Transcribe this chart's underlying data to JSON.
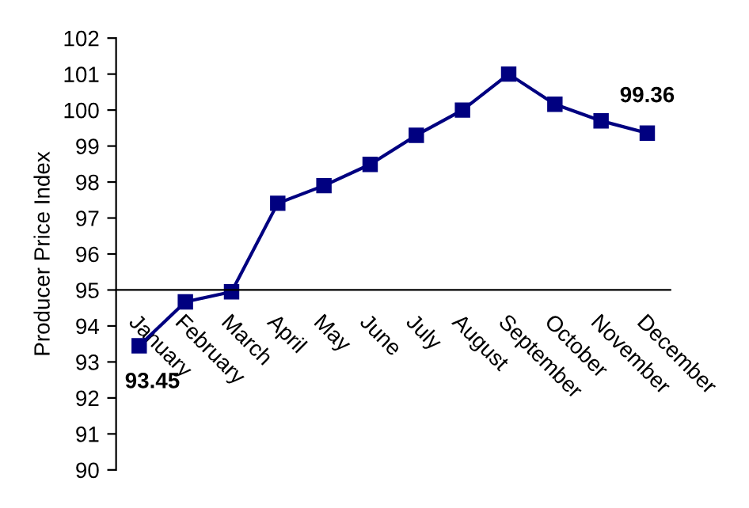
{
  "chart_data": {
    "type": "line",
    "ylabel": "Producer Price Index",
    "categories": [
      "January",
      "February",
      "March",
      "April",
      "May",
      "June",
      "July",
      "August",
      "September",
      "October",
      "November",
      "December"
    ],
    "series": [
      {
        "color": "#000080",
        "values": [
          93.45,
          94.67,
          94.95,
          97.41,
          97.9,
          98.49,
          99.3,
          100.0,
          101.0,
          100.16,
          99.7,
          99.36
        ],
        "value_labels": [
          "93.45",
          null,
          null,
          null,
          null,
          null,
          null,
          null,
          null,
          null,
          null,
          "99.36"
        ]
      }
    ],
    "ylim": [
      90,
      102
    ],
    "yticks": [
      90,
      91,
      92,
      93,
      94,
      95,
      96,
      97,
      98,
      99,
      100,
      101,
      102
    ],
    "marker": "square",
    "line_style": "solid",
    "grid": false,
    "legend": false
  }
}
